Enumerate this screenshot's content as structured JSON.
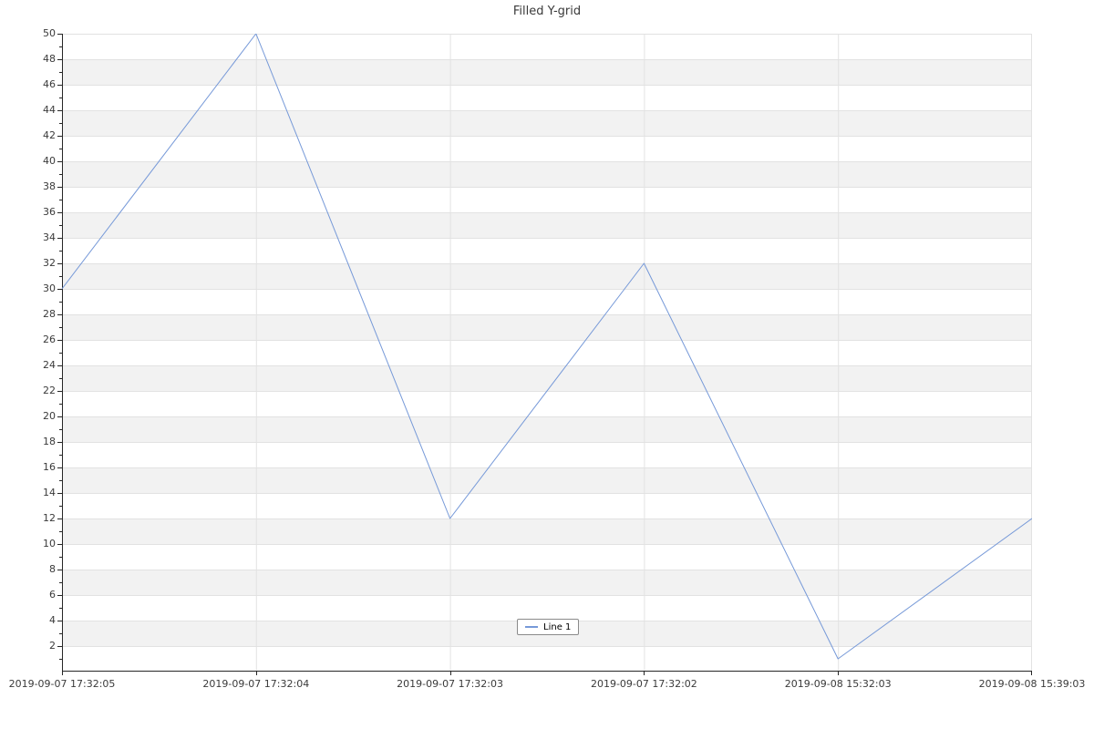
{
  "chart_data": {
    "type": "line",
    "title": "Filled Y-grid",
    "x_labels": [
      "2019-09-07 17:32:05",
      "2019-09-07 17:32:04",
      "2019-09-07 17:32:03",
      "2019-09-07 17:32:02",
      "2019-09-08 15:32:03",
      "2019-09-08 15:39:03"
    ],
    "series": [
      {
        "name": "Line 1",
        "color": "#7699d8",
        "values": [
          30,
          50,
          12,
          32,
          1,
          12
        ]
      }
    ],
    "ylim": [
      0,
      50
    ],
    "yticks": [
      2,
      4,
      6,
      8,
      10,
      12,
      14,
      16,
      18,
      20,
      22,
      24,
      26,
      28,
      30,
      32,
      34,
      36,
      38,
      40,
      42,
      44,
      46,
      48,
      50
    ],
    "y_minor_step": 1,
    "grid": "filled horizontal bands every 2 units, alternating",
    "bands": {
      "start": 2,
      "step": 4,
      "span": 2
    },
    "legend": {
      "label": "Line 1",
      "position": "bottom-center"
    },
    "colors": {
      "band_fill": "#f2f2f2",
      "grid_line": "#e2e2e2",
      "axis": "#262626",
      "tick_label": "#3a3a3a",
      "title": "#3a3a3a",
      "line": "#7699d8",
      "legend_border": "#8a8a8a"
    }
  }
}
